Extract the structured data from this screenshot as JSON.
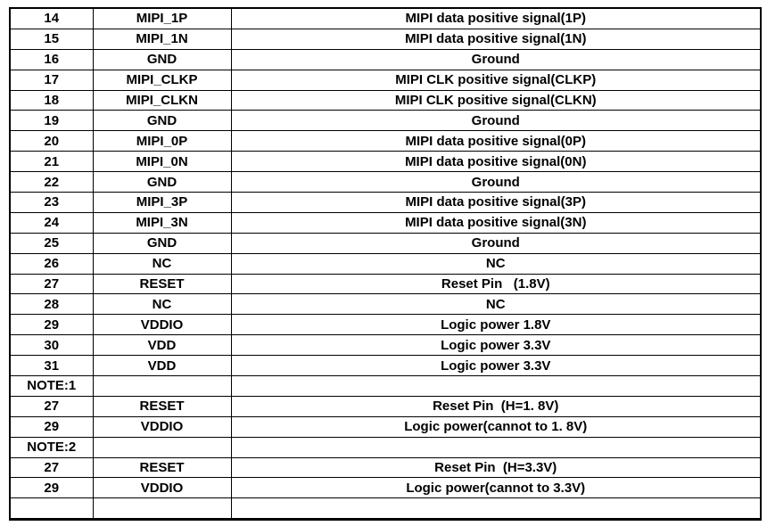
{
  "page": {
    "background": "#ffffff",
    "grid_color": "#000000",
    "text_color": "#000000"
  },
  "pin_table": {
    "rows": [
      [
        "14",
        "MIPI_1P",
        "MIPI data positive signal(1P)"
      ],
      [
        "15",
        "MIPI_1N",
        "MIPI data positive signal(1N)"
      ],
      [
        "16",
        "GND",
        "Ground"
      ],
      [
        "17",
        "MIPI_CLKP",
        "MIPI CLK positive signal(CLKP)"
      ],
      [
        "18",
        "MIPI_CLKN",
        "MIPI CLK positive signal(CLKN)"
      ],
      [
        "19",
        "GND",
        "Ground"
      ],
      [
        "20",
        "MIPI_0P",
        "MIPI data positive signal(0P)"
      ],
      [
        "21",
        "MIPI_0N",
        "MIPI data positive signal(0N)"
      ],
      [
        "22",
        "GND",
        "Ground"
      ],
      [
        "23",
        "MIPI_3P",
        "MIPI data positive signal(3P)"
      ],
      [
        "24",
        "MIPI_3N",
        "MIPI data positive signal(3N)"
      ],
      [
        "25",
        "GND",
        "Ground"
      ],
      [
        "26",
        "NC",
        "NC"
      ],
      [
        "27",
        "RESET",
        "Reset Pin   (1.8V)"
      ],
      [
        "28",
        "NC",
        "NC"
      ],
      [
        "29",
        "VDDIO",
        "Logic power 1.8V"
      ],
      [
        "30",
        "VDD",
        "Logic power 3.3V"
      ],
      [
        "31",
        "VDD",
        "Logic power 3.3V"
      ],
      [
        "NOTE:1",
        "",
        ""
      ],
      [
        "27",
        "RESET",
        "Reset Pin  (H=1. 8V)"
      ],
      [
        "29",
        "VDDIO",
        "Logic power(cannot to 1. 8V)"
      ],
      [
        "NOTE:2",
        "",
        ""
      ],
      [
        "27",
        "RESET",
        "Reset Pin  (H=3.3V)"
      ],
      [
        "29",
        "VDDIO",
        "Logic power(cannot to 3.3V)"
      ],
      [
        "",
        "",
        ""
      ]
    ]
  }
}
